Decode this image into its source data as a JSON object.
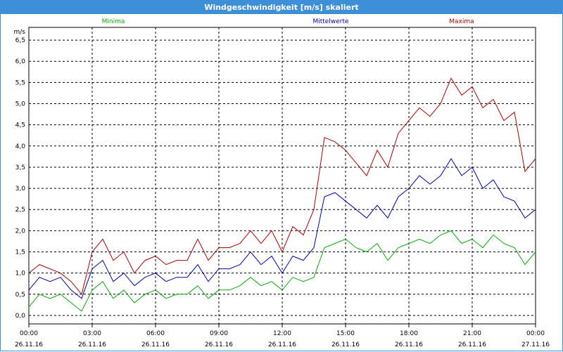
{
  "window": {
    "title": "Windgeschwindigkeit [m/s] skaliert",
    "title_bg": "#3d8fd8"
  },
  "chart_data": {
    "type": "line",
    "title": "Windgeschwindigkeit [m/s] skaliert",
    "ylabel": "m/s",
    "xlabel": "",
    "ylim": [
      -0.2,
      6.8
    ],
    "y_ticks": [
      "0,0",
      "0,5",
      "1,0",
      "1,5",
      "2,0",
      "2,5",
      "3,0",
      "3,5",
      "4,0",
      "4,5",
      "5,0",
      "5,5",
      "6,0",
      "6,5"
    ],
    "x_ticks": [
      {
        "time": "00:00",
        "date": "26.11.16"
      },
      {
        "time": "03:00",
        "date": "26.11.16"
      },
      {
        "time": "06:00",
        "date": "26.11.16"
      },
      {
        "time": "09:00",
        "date": "26.11.16"
      },
      {
        "time": "12:00",
        "date": "26.11.16"
      },
      {
        "time": "15:00",
        "date": "26.11.16"
      },
      {
        "time": "18:00",
        "date": "26.11.16"
      },
      {
        "time": "21:00",
        "date": "26.11.16"
      },
      {
        "time": "00:00",
        "date": "27.11.16"
      }
    ],
    "grid": true,
    "x_hours": [
      0,
      0.5,
      1,
      1.5,
      2,
      2.5,
      3,
      3.5,
      4,
      4.5,
      5,
      5.5,
      6,
      6.5,
      7,
      7.5,
      8,
      8.5,
      9,
      9.5,
      10,
      10.5,
      11,
      11.5,
      12,
      12.5,
      13,
      13.5,
      14,
      14.5,
      15,
      15.5,
      16,
      16.5,
      17,
      17.5,
      18,
      18.5,
      19,
      19.5,
      20,
      20.5,
      21,
      21.5,
      22,
      22.5,
      23,
      23.5,
      24
    ],
    "series": [
      {
        "name": "Minima",
        "color": "#00b000",
        "values": [
          0.2,
          0.5,
          0.4,
          0.5,
          0.3,
          0.1,
          0.6,
          0.8,
          0.4,
          0.6,
          0.3,
          0.5,
          0.6,
          0.4,
          0.5,
          0.5,
          0.7,
          0.4,
          0.6,
          0.6,
          0.7,
          0.9,
          0.7,
          0.8,
          0.6,
          0.9,
          0.8,
          0.9,
          1.6,
          1.7,
          1.8,
          1.6,
          1.5,
          1.7,
          1.3,
          1.6,
          1.7,
          1.8,
          1.7,
          1.9,
          2.0,
          1.7,
          1.8,
          1.6,
          1.9,
          1.7,
          1.6,
          1.2,
          1.5
        ]
      },
      {
        "name": "Mittelwerte",
        "color": "#0000b0",
        "values": [
          0.6,
          0.9,
          0.8,
          0.9,
          0.6,
          0.4,
          1.1,
          1.3,
          0.8,
          1.0,
          0.7,
          0.9,
          1.0,
          0.8,
          0.9,
          0.9,
          1.2,
          0.8,
          1.1,
          1.1,
          1.2,
          1.5,
          1.2,
          1.4,
          1.0,
          1.4,
          1.3,
          1.6,
          2.8,
          2.9,
          2.7,
          2.5,
          2.3,
          2.6,
          2.3,
          2.8,
          3.0,
          3.3,
          3.1,
          3.3,
          3.7,
          3.3,
          3.5,
          3.0,
          3.2,
          2.8,
          2.7,
          2.3,
          2.5
        ]
      },
      {
        "name": "Maxima",
        "color": "#b00000",
        "values": [
          1.0,
          1.2,
          1.1,
          1.0,
          0.8,
          0.5,
          1.5,
          1.8,
          1.3,
          1.5,
          1.0,
          1.3,
          1.4,
          1.2,
          1.3,
          1.3,
          1.8,
          1.3,
          1.6,
          1.6,
          1.7,
          2.0,
          1.7,
          2.0,
          1.5,
          2.1,
          1.9,
          2.5,
          4.2,
          4.1,
          3.9,
          3.6,
          3.3,
          3.9,
          3.5,
          4.3,
          4.6,
          4.9,
          4.7,
          5.0,
          5.6,
          5.2,
          5.4,
          4.9,
          5.1,
          4.6,
          4.8,
          3.4,
          3.7
        ]
      }
    ]
  }
}
